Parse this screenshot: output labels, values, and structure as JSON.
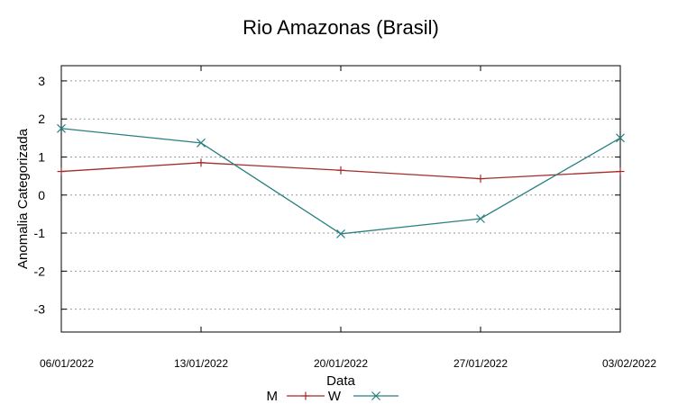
{
  "chart_data": {
    "type": "line",
    "title": "Rio Amazonas (Brasil)",
    "xlabel": "Data",
    "ylabel": "Anomalia Categorizada",
    "categories": [
      "06/01/2022",
      "13/01/2022",
      "20/01/2022",
      "27/01/2022",
      "03/02/2022"
    ],
    "ylim": [
      -3.6,
      3.4
    ],
    "yticks": [
      3,
      2,
      1,
      0,
      -1,
      -2,
      -3
    ],
    "ytick_labels": [
      "3",
      "2",
      "1",
      "0",
      "-1",
      "-2",
      "-3"
    ],
    "grid": true,
    "legend_position": "bottom-center",
    "series": [
      {
        "name": "M",
        "color": "#a52a2a",
        "marker": "plus",
        "values": [
          0.62,
          0.85,
          0.65,
          0.43,
          0.62
        ]
      },
      {
        "name": "W",
        "color": "#2a7f7f",
        "marker": "x",
        "values": [
          1.75,
          1.37,
          -1.02,
          -0.62,
          1.5
        ]
      }
    ]
  }
}
